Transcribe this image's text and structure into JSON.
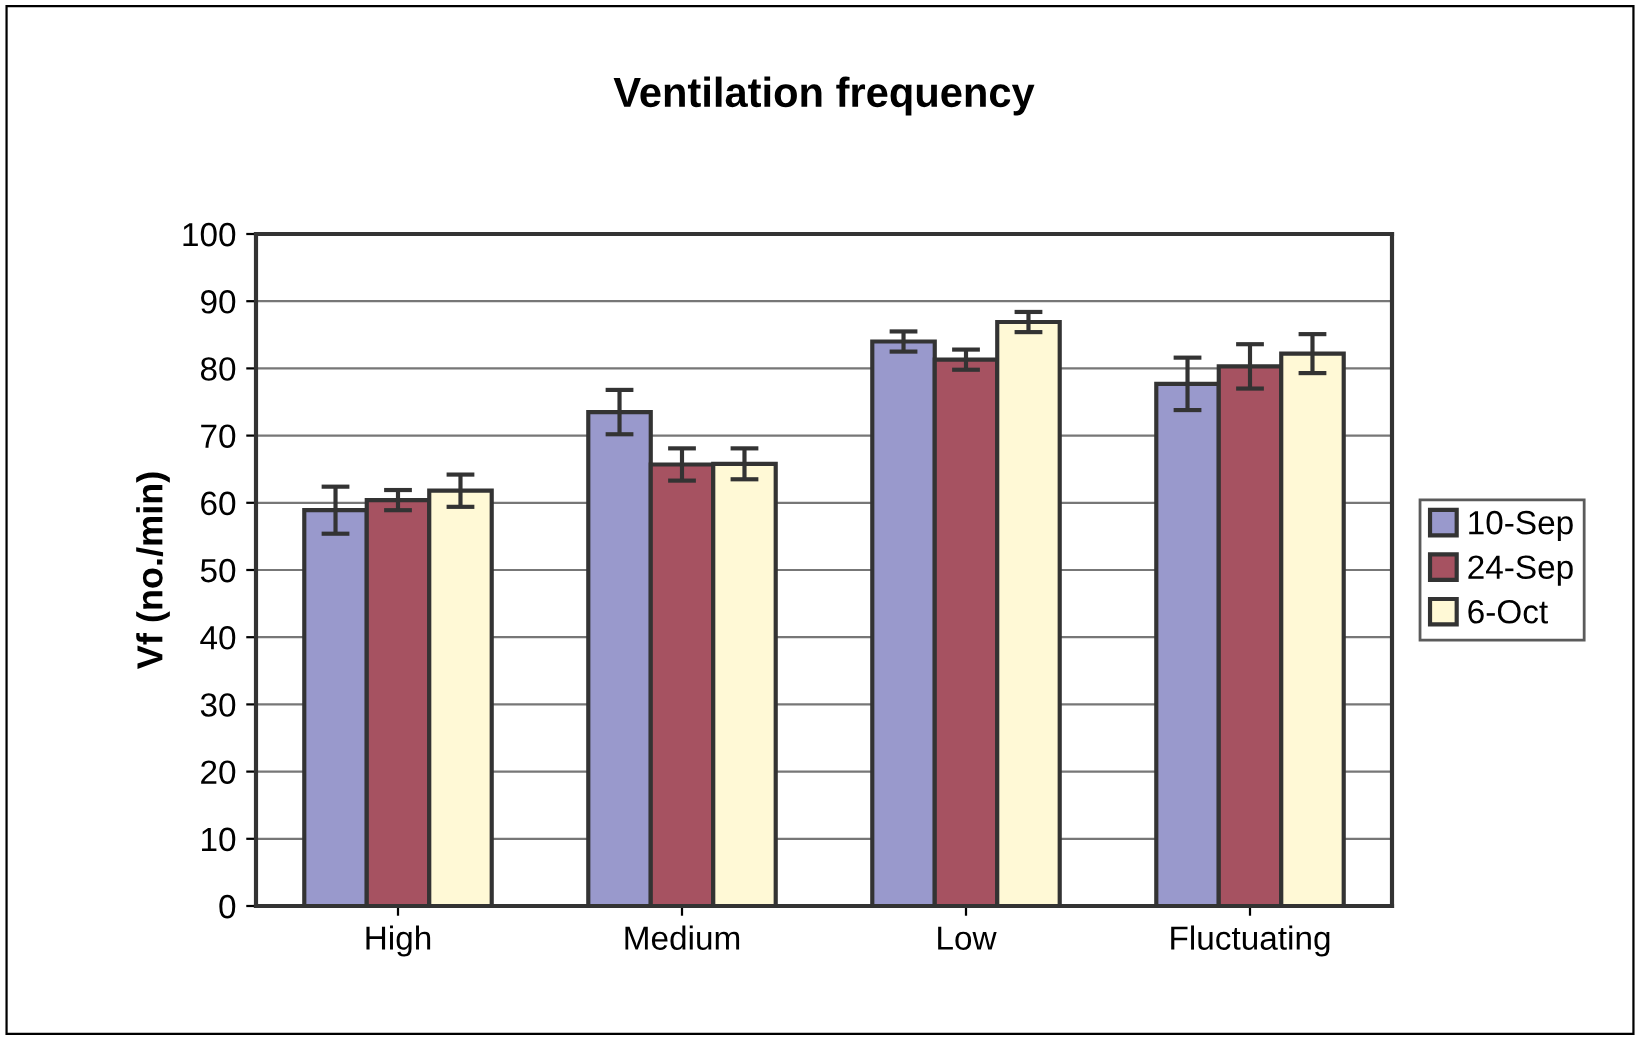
{
  "chart_data": {
    "type": "bar",
    "title": "Ventilation frequency",
    "ylabel": "Vf (no./min)",
    "categories": [
      "High",
      "Medium",
      "Low",
      "Fluctuating"
    ],
    "series": [
      {
        "name": "10-Sep",
        "color": "#9999cc",
        "values": [
          58.9,
          73.5,
          84.0,
          77.7
        ],
        "errors": [
          3.5,
          3.3,
          1.5,
          3.9
        ]
      },
      {
        "name": "24-Sep",
        "color": "#a65261",
        "values": [
          60.4,
          65.7,
          81.3,
          80.3
        ],
        "errors": [
          1.5,
          2.4,
          1.5,
          3.3
        ]
      },
      {
        "name": "6-Oct",
        "color": "#fff9d6",
        "values": [
          61.8,
          65.8,
          86.9,
          82.2
        ],
        "errors": [
          2.4,
          2.3,
          1.5,
          2.9
        ]
      }
    ],
    "ylim": [
      0,
      100
    ],
    "yticks": [
      0,
      10,
      20,
      30,
      40,
      50,
      60,
      70,
      80,
      90,
      100
    ],
    "grid": "y",
    "legend": "right"
  }
}
